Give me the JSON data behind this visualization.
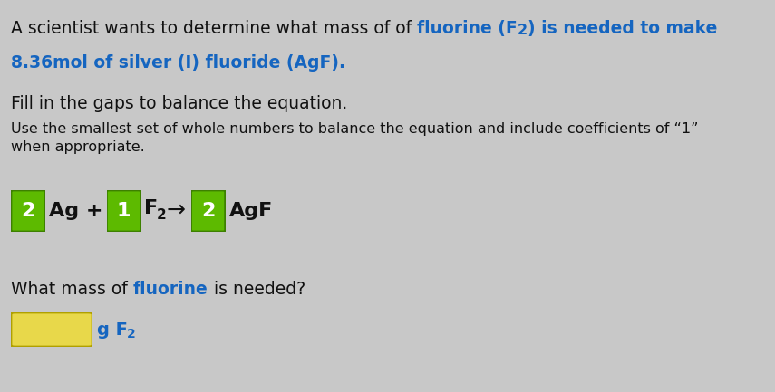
{
  "background_color": "#c8c8c8",
  "title_line1_parts": [
    {
      "text": "A scientist wants to determine what mass of of ",
      "color": "#111111",
      "bold": false,
      "sub": false
    },
    {
      "text": "fluorine (F",
      "color": "#1565c0",
      "bold": true,
      "sub": false
    },
    {
      "text": "2",
      "color": "#1565c0",
      "bold": true,
      "sub": true
    },
    {
      "text": ") is needed to make",
      "color": "#1565c0",
      "bold": true,
      "sub": false
    }
  ],
  "title_line2": "8.36mol of silver (I) fluoride (AgF).",
  "title_line2_color": "#1565c0",
  "fill_label": "Fill in the gaps to balance the equation.",
  "instruction1": "Use the smallest set of whole numbers to balance the equation and include coefficients of “1”",
  "instruction2": "when appropriate.",
  "coeff1": "2",
  "reagent1": "Ag +",
  "coeff2": "1",
  "f_normal": "F",
  "f_sub": "2",
  "arrow": "→",
  "coeff3": "2",
  "product": "AgF",
  "mass_parts": [
    {
      "text": "What mass of ",
      "color": "#111111",
      "bold": false
    },
    {
      "text": "fluorine",
      "color": "#1565c0",
      "bold": true
    },
    {
      "text": " is needed?",
      "color": "#111111",
      "bold": false
    }
  ],
  "unit_normal": "g F",
  "unit_sub": "2",
  "green_color": "#5dba00",
  "green_edge": "#3d8000",
  "yellow_color": "#e8d84a",
  "yellow_edge": "#b0a000",
  "dark_text": "#111111",
  "blue_text": "#1565c0",
  "fs_title": 13.5,
  "fs_label": 13.5,
  "fs_instr": 11.5,
  "fs_eq": 16,
  "fs_eq_sub": 11,
  "fs_unit": 14,
  "fs_unit_sub": 10
}
